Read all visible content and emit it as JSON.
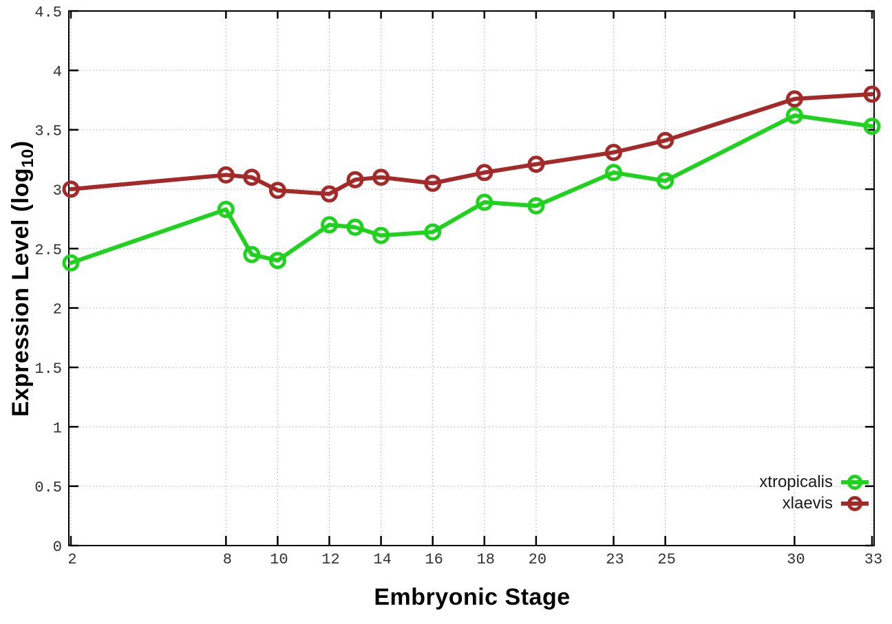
{
  "chart_data": {
    "type": "line",
    "title": "",
    "xlabel": "Embryonic Stage",
    "ylabel": "Expression Level (log10)",
    "ylabel_prefix": "Expression Level (log",
    "ylabel_sub": "10",
    "ylabel_suffix": ")",
    "x": [
      2,
      8,
      9,
      10,
      12,
      13,
      14,
      16,
      18,
      20,
      23,
      25,
      30,
      33
    ],
    "series": [
      {
        "name": "xtropicalis",
        "color": "#1ed21e",
        "marker": "open-circle",
        "values": [
          2.38,
          2.83,
          2.45,
          2.4,
          2.7,
          2.68,
          2.61,
          2.64,
          2.89,
          2.86,
          3.14,
          3.07,
          3.62,
          3.53
        ]
      },
      {
        "name": "xlaevis",
        "color": "#a42a2a",
        "marker": "open-circle",
        "values": [
          3.0,
          3.12,
          3.1,
          2.99,
          2.96,
          3.08,
          3.1,
          3.05,
          3.14,
          3.21,
          3.31,
          3.41,
          3.76,
          3.8
        ]
      }
    ],
    "xticks": [
      2,
      8,
      10,
      12,
      14,
      16,
      18,
      20,
      23,
      25,
      30,
      33
    ],
    "xtick_labels": [
      "2",
      "8",
      "10",
      "12",
      "14",
      "16",
      "18",
      "20",
      "23",
      "25",
      "30",
      "33"
    ],
    "yticks": [
      0,
      0.5,
      1,
      1.5,
      2,
      2.5,
      3,
      3.5,
      4,
      4.5
    ],
    "ytick_labels": [
      "0",
      "0.5",
      "1",
      "1.5",
      "2",
      "2.5",
      "3",
      "3.5",
      "4",
      "4.5"
    ],
    "xlim": [
      1.92,
      33.08
    ],
    "ylim": [
      0,
      4.5
    ],
    "grid": true,
    "legend_position": "bottom-right"
  },
  "styles": {
    "background": "#ffffff",
    "axis_color": "#000000",
    "grid_color": "#b5b5b5",
    "tick_label_color": "#303030"
  }
}
